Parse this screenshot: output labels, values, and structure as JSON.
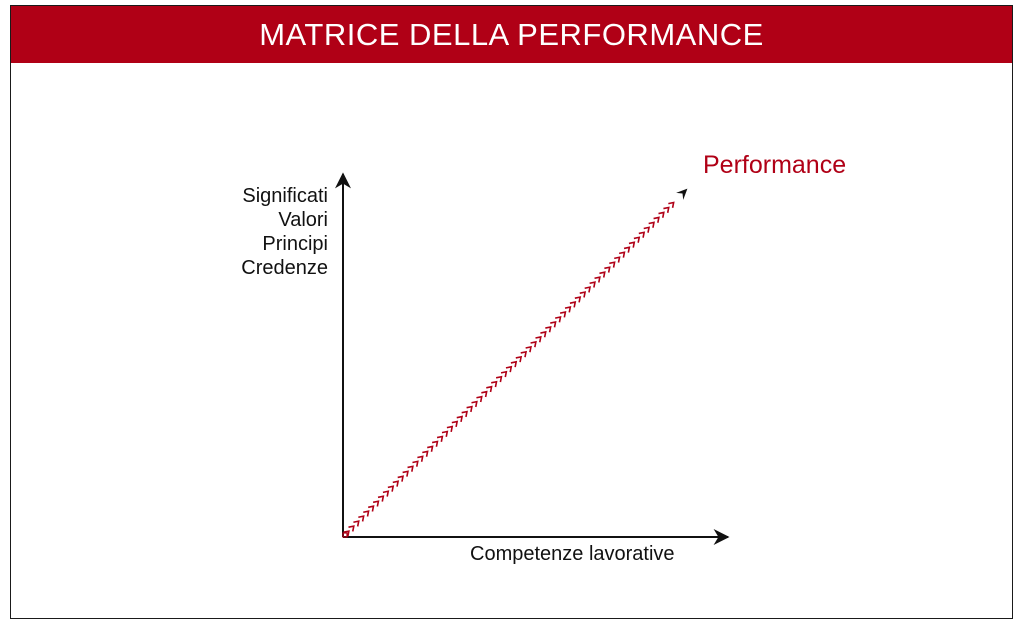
{
  "title": "MATRICE DELLA PERFORMANCE",
  "y_axis": {
    "labels": [
      "Significati",
      "Valori",
      "Principi",
      "Credenze"
    ]
  },
  "x_axis": {
    "label": "Competenze lavorative"
  },
  "diagonal": {
    "label": "Performance"
  },
  "colors": {
    "accent": "#b00016",
    "title_text": "#ffffff",
    "axis": "#111111",
    "border": "#1a1a1a",
    "background": "#ffffff"
  }
}
